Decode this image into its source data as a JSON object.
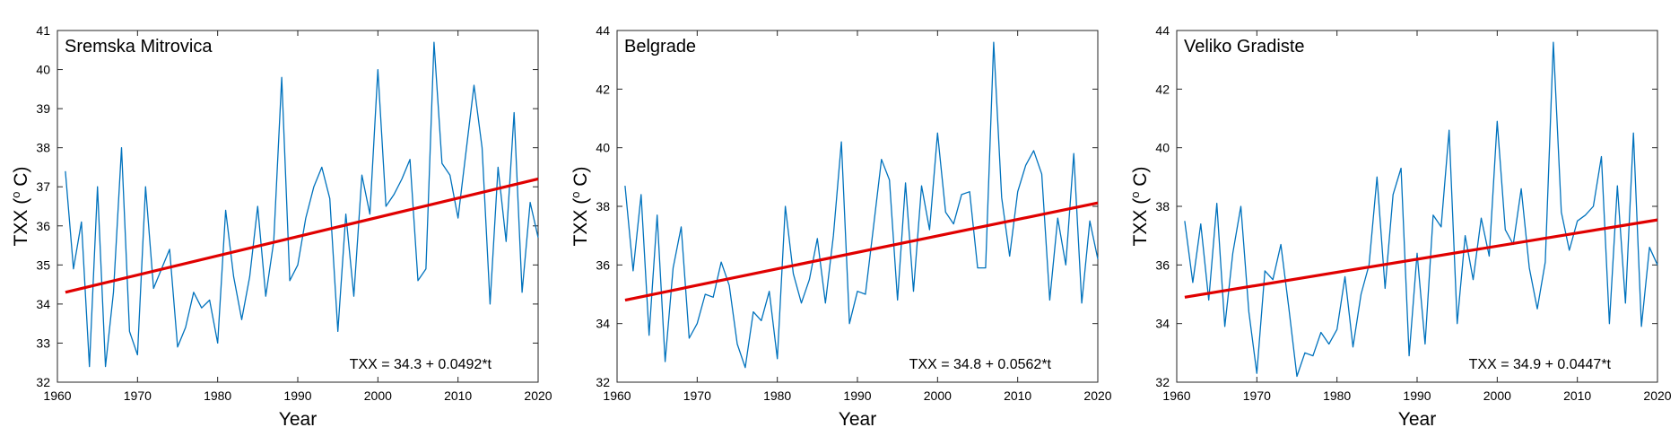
{
  "chart_data": [
    {
      "type": "line",
      "title": "Sremska Mitrovica",
      "xlabel": "Year",
      "ylabel_main": "TXX (",
      "ylabel_sup": "o",
      "ylabel_tail": " C)",
      "equation": "TXX = 34.3 + 0.0492*t",
      "xlim": [
        1960,
        2020
      ],
      "ylim": [
        32,
        41
      ],
      "xticks": [
        1960,
        1970,
        1980,
        1990,
        2000,
        2010,
        2020
      ],
      "yticks": [
        32,
        33,
        34,
        35,
        36,
        37,
        38,
        39,
        40,
        41
      ],
      "trend": {
        "intercept": 34.3,
        "slope": 0.0492,
        "start_year": 1961,
        "end_year": 2020
      },
      "series": [
        {
          "x": [
            1961,
            1962,
            1963,
            1964,
            1965,
            1966,
            1967,
            1968,
            1969,
            1970,
            1971,
            1972,
            1973,
            1974,
            1975,
            1976,
            1977,
            1978,
            1979,
            1980,
            1981,
            1982,
            1983,
            1984,
            1985,
            1986,
            1987,
            1988,
            1989,
            1990,
            1991,
            1992,
            1993,
            1994,
            1995,
            1996,
            1997,
            1998,
            1999,
            2000,
            2001,
            2002,
            2003,
            2004,
            2005,
            2006,
            2007,
            2008,
            2009,
            2010,
            2011,
            2012,
            2013,
            2014,
            2015,
            2016,
            2017,
            2018,
            2019,
            2020
          ],
          "y": [
            37.4,
            34.9,
            36.1,
            32.4,
            37.0,
            32.4,
            34.3,
            38.0,
            33.3,
            32.7,
            37.0,
            34.4,
            34.9,
            35.4,
            32.9,
            33.4,
            34.3,
            33.9,
            34.1,
            33.0,
            36.4,
            34.7,
            33.6,
            34.7,
            36.5,
            34.2,
            35.6,
            39.8,
            34.6,
            35.0,
            36.2,
            37.0,
            37.5,
            36.7,
            33.3,
            36.3,
            34.2,
            37.3,
            36.3,
            40.0,
            36.5,
            36.8,
            37.2,
            37.7,
            34.6,
            34.9,
            40.7,
            37.6,
            37.3,
            36.2,
            37.9,
            39.6,
            38.0,
            34.0,
            37.5,
            35.6,
            38.9,
            34.3,
            36.6,
            35.7
          ]
        }
      ]
    },
    {
      "type": "line",
      "title": "Belgrade",
      "xlabel": "Year",
      "ylabel_main": "TXX (",
      "ylabel_sup": "o",
      "ylabel_tail": " C)",
      "equation": "TXX = 34.8 + 0.0562*t",
      "xlim": [
        1960,
        2020
      ],
      "ylim": [
        32,
        44
      ],
      "xticks": [
        1960,
        1970,
        1980,
        1990,
        2000,
        2010,
        2020
      ],
      "yticks": [
        32,
        34,
        36,
        38,
        40,
        42,
        44
      ],
      "trend": {
        "intercept": 34.8,
        "slope": 0.0562,
        "start_year": 1961,
        "end_year": 2020
      },
      "series": [
        {
          "x": [
            1961,
            1962,
            1963,
            1964,
            1965,
            1966,
            1967,
            1968,
            1969,
            1970,
            1971,
            1972,
            1973,
            1974,
            1975,
            1976,
            1977,
            1978,
            1979,
            1980,
            1981,
            1982,
            1983,
            1984,
            1985,
            1986,
            1987,
            1988,
            1989,
            1990,
            1991,
            1992,
            1993,
            1994,
            1995,
            1996,
            1997,
            1998,
            1999,
            2000,
            2001,
            2002,
            2003,
            2004,
            2005,
            2006,
            2007,
            2008,
            2009,
            2010,
            2011,
            2012,
            2013,
            2014,
            2015,
            2016,
            2017,
            2018,
            2019,
            2020
          ],
          "y": [
            38.7,
            35.8,
            38.4,
            33.6,
            37.7,
            32.7,
            35.9,
            37.3,
            33.5,
            34.0,
            35.0,
            34.9,
            36.1,
            35.3,
            33.3,
            32.5,
            34.4,
            34.1,
            35.1,
            32.8,
            38.0,
            35.7,
            34.7,
            35.5,
            36.9,
            34.7,
            37.0,
            40.2,
            34.0,
            35.1,
            35.0,
            37.3,
            39.6,
            38.9,
            34.8,
            38.8,
            35.1,
            38.7,
            37.2,
            40.5,
            37.8,
            37.4,
            38.4,
            38.5,
            35.9,
            35.9,
            43.6,
            38.3,
            36.3,
            38.5,
            39.4,
            39.9,
            39.1,
            34.8,
            37.6,
            36.0,
            39.8,
            34.7,
            37.5,
            36.2
          ]
        }
      ]
    },
    {
      "type": "line",
      "title": "Veliko Gradiste",
      "xlabel": "Year",
      "ylabel_main": "TXX (",
      "ylabel_sup": "o",
      "ylabel_tail": " C)",
      "equation": "TXX = 34.9 + 0.0447*t",
      "xlim": [
        1960,
        2020
      ],
      "ylim": [
        32,
        44
      ],
      "xticks": [
        1960,
        1970,
        1980,
        1990,
        2000,
        2010,
        2020
      ],
      "yticks": [
        32,
        34,
        36,
        38,
        40,
        42,
        44
      ],
      "trend": {
        "intercept": 34.9,
        "slope": 0.0447,
        "start_year": 1961,
        "end_year": 2020
      },
      "series": [
        {
          "x": [
            1961,
            1962,
            1963,
            1964,
            1965,
            1966,
            1967,
            1968,
            1969,
            1970,
            1971,
            1972,
            1973,
            1974,
            1975,
            1976,
            1977,
            1978,
            1979,
            1980,
            1981,
            1982,
            1983,
            1984,
            1985,
            1986,
            1987,
            1988,
            1989,
            1990,
            1991,
            1992,
            1993,
            1994,
            1995,
            1996,
            1997,
            1998,
            1999,
            2000,
            2001,
            2002,
            2003,
            2004,
            2005,
            2006,
            2007,
            2008,
            2009,
            2010,
            2011,
            2012,
            2013,
            2014,
            2015,
            2016,
            2017,
            2018,
            2019,
            2020
          ],
          "y": [
            37.5,
            35.4,
            37.4,
            34.8,
            38.1,
            33.9,
            36.4,
            38.0,
            34.4,
            32.3,
            35.8,
            35.5,
            36.7,
            34.5,
            32.2,
            33.0,
            32.9,
            33.7,
            33.3,
            33.8,
            35.6,
            33.2,
            35.0,
            36.0,
            39.0,
            35.2,
            38.4,
            39.3,
            32.9,
            36.4,
            33.3,
            37.7,
            37.3,
            40.6,
            34.0,
            37.0,
            35.5,
            37.6,
            36.3,
            40.9,
            37.2,
            36.7,
            38.6,
            35.9,
            34.5,
            36.1,
            43.6,
            37.8,
            36.5,
            37.5,
            37.7,
            38.0,
            39.7,
            34.0,
            38.7,
            34.7,
            40.5,
            33.9,
            36.6,
            36.0
          ]
        }
      ]
    }
  ],
  "colors": {
    "series": "#0072BD",
    "trend": "#e00000",
    "axis": "#262626"
  }
}
